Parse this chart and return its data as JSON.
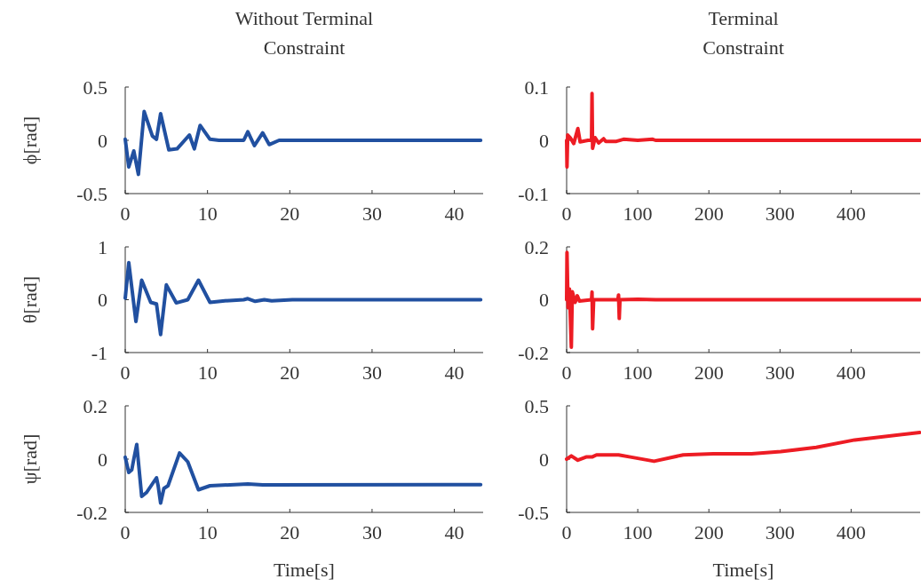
{
  "chart_data": [
    {
      "type": "line",
      "title": "Without Terminal Constraint",
      "ylabel": "ϕ[rad]",
      "xlim": [
        0,
        43.5
      ],
      "ylim": [
        -0.5,
        0.5
      ],
      "xticks": [
        0,
        10,
        20,
        30,
        40
      ],
      "yticks": [
        -0.5,
        0,
        0.5
      ],
      "series": [
        {
          "color": "#2150a0",
          "x": [
            0,
            0.43,
            1.04,
            1.6,
            2.3,
            3.3,
            3.8,
            4.3,
            5.3,
            6.3,
            7.8,
            8.4,
            9.1,
            10.3,
            11.4,
            14.4,
            14.9,
            15.7,
            16.7,
            17.5,
            18.7,
            43.2
          ],
          "values": [
            0.01,
            -0.25,
            -0.1,
            -0.32,
            0.27,
            0.04,
            0.01,
            0.25,
            -0.09,
            -0.08,
            0.05,
            -0.08,
            0.14,
            0.01,
            0,
            0,
            0.08,
            -0.05,
            0.07,
            -0.04,
            0,
            0
          ]
        }
      ]
    },
    {
      "type": "line",
      "title": "Terminal Constraint",
      "xlim": [
        0,
        497
      ],
      "ylim": [
        -0.1,
        0.1
      ],
      "xticks": [
        0,
        100,
        200,
        300,
        400
      ],
      "yticks": [
        -0.1,
        0,
        0.1
      ],
      "series": [
        {
          "color": "#ed1c24",
          "x": [
            0,
            0.5,
            1.5,
            5,
            10,
            15.8,
            19,
            30,
            35,
            35.7,
            36.5,
            40,
            45,
            52,
            55,
            70,
            80,
            100,
            121,
            125,
            497
          ],
          "values": [
            0,
            -0.05,
            0.01,
            0.005,
            -0.006,
            0.022,
            -0.003,
            0,
            0,
            0.088,
            -0.015,
            0.005,
            -0.005,
            0.003,
            -0.002,
            -0.002,
            0.002,
            0,
            0.002,
            0,
            0
          ]
        }
      ]
    },
    {
      "type": "line",
      "ylabel": "θ[rad]",
      "xlim": [
        0,
        43.5
      ],
      "ylim": [
        -1,
        1
      ],
      "xticks": [
        0,
        10,
        20,
        30,
        40
      ],
      "yticks": [
        -1,
        0,
        1
      ],
      "series": [
        {
          "color": "#2150a0",
          "x": [
            0,
            0.43,
            1.3,
            2,
            3.1,
            3.8,
            4.3,
            5,
            6.2,
            7.6,
            8.9,
            10.3,
            12.1,
            14.4,
            14.9,
            15.8,
            16.9,
            17.8,
            20.3,
            43.2
          ],
          "values": [
            0.03,
            0.7,
            -0.41,
            0.37,
            -0.05,
            -0.08,
            -0.66,
            0.28,
            -0.06,
            0,
            0.37,
            -0.05,
            -0.02,
            0,
            0.02,
            -0.03,
            0,
            -0.02,
            0,
            0
          ]
        }
      ]
    },
    {
      "type": "line",
      "xlim": [
        0,
        497
      ],
      "ylim": [
        -0.2,
        0.2
      ],
      "xticks": [
        0,
        100,
        200,
        300,
        400
      ],
      "yticks": [
        -0.2,
        0,
        0.2
      ],
      "series": [
        {
          "color": "#ed1c24",
          "x": [
            0,
            0.5,
            2,
            4,
            6.6,
            8,
            12,
            15,
            18,
            35,
            35.7,
            36.5,
            38,
            50,
            72,
            73,
            74,
            75,
            100,
            125,
            497
          ],
          "values": [
            0,
            0.179,
            -0.03,
            0.04,
            -0.18,
            0.03,
            -0.01,
            0.015,
            -0.005,
            0,
            0.029,
            -0.11,
            0,
            0,
            0,
            0.018,
            -0.071,
            0,
            0.002,
            0,
            0
          ]
        }
      ]
    },
    {
      "type": "line",
      "ylabel": "ψ[rad]",
      "xlabel": "Time[s]",
      "xlim": [
        0,
        43.5
      ],
      "ylim": [
        -0.2,
        0.2
      ],
      "xticks": [
        0,
        10,
        20,
        30,
        40
      ],
      "yticks": [
        -0.2,
        0,
        0.2
      ],
      "series": [
        {
          "color": "#2150a0",
          "x": [
            0,
            0.43,
            0.8,
            1.04,
            1.4,
            2,
            2.6,
            3.8,
            4,
            4.3,
            4.7,
            5.2,
            6.6,
            7.6,
            8.9,
            10.3,
            14.9,
            16.7,
            43.2
          ],
          "values": [
            0.007,
            -0.05,
            -0.04,
            0,
            0.055,
            -0.14,
            -0.125,
            -0.07,
            -0.1,
            -0.165,
            -0.11,
            -0.1,
            0.023,
            -0.01,
            -0.115,
            -0.1,
            -0.093,
            -0.097,
            -0.096
          ]
        }
      ]
    },
    {
      "type": "line",
      "xlabel": "Time[s]",
      "xlim": [
        0,
        497
      ],
      "ylim": [
        -0.5,
        0.5
      ],
      "xticks": [
        0,
        100,
        200,
        300,
        400
      ],
      "yticks": [
        -0.5,
        0,
        0.5
      ],
      "series": [
        {
          "color": "#ed1c24",
          "x": [
            0,
            6.6,
            15.8,
            27.4,
            35.7,
            42,
            73,
            89.7,
            122.9,
            164,
            206,
            260,
            301,
            351,
            405,
            496.5
          ],
          "values": [
            0,
            0.03,
            -0.01,
            0.02,
            0.02,
            0.04,
            0.04,
            0.02,
            -0.02,
            0.04,
            0.05,
            0.05,
            0.07,
            0.11,
            0.18,
            0.25
          ]
        }
      ]
    }
  ]
}
